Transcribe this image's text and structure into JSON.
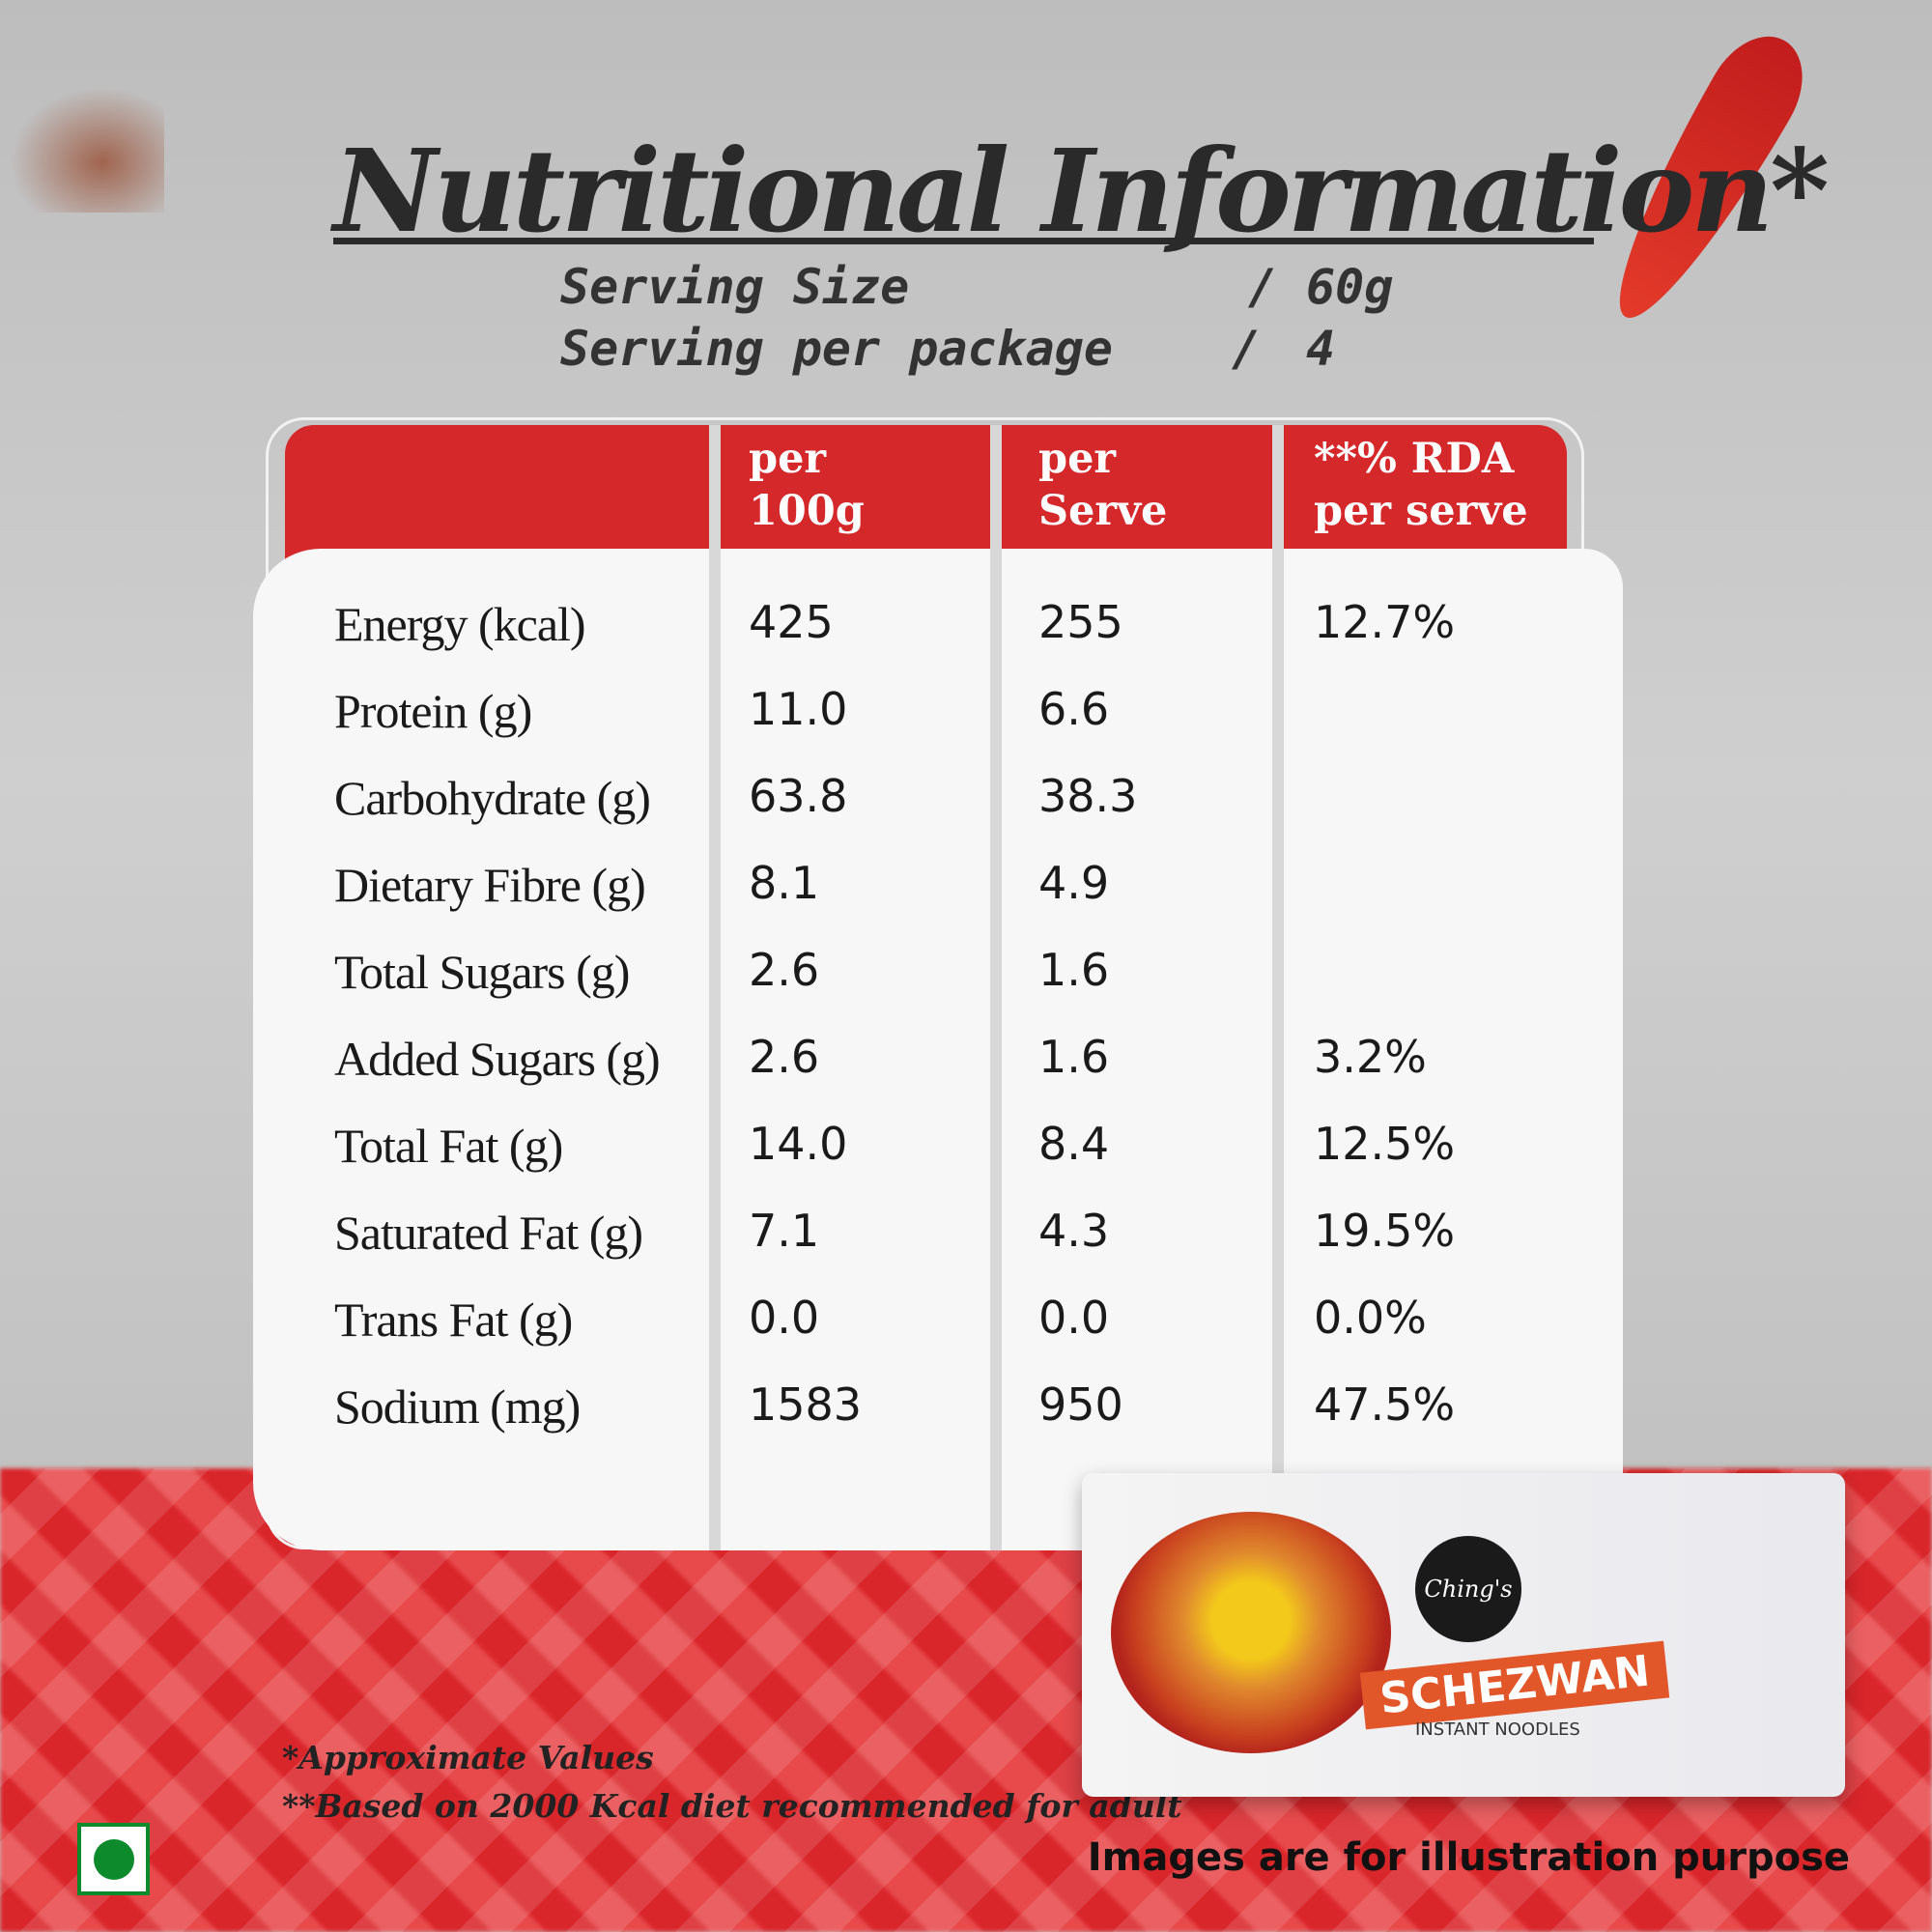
{
  "title": "Nutritional Information*",
  "serving": [
    {
      "label": "Serving Size",
      "value": "60g"
    },
    {
      "label": "Serving per package",
      "value": "4"
    }
  ],
  "table": {
    "headers": [
      [
        "per",
        "100g"
      ],
      [
        "per",
        "Serve"
      ],
      [
        "**% RDA",
        "per serve"
      ]
    ],
    "rows": [
      [
        "Energy (kcal)",
        "425",
        "255",
        "12.7%"
      ],
      [
        "Protein (g)",
        "11.0",
        "6.6",
        null
      ],
      [
        "Carbohydrate (g)",
        "63.8",
        "38.3",
        null
      ],
      [
        "Dietary Fibre (g)",
        "8.1",
        "4.9",
        null
      ],
      [
        "Total Sugars (g)",
        "2.6",
        "1.6",
        null
      ],
      [
        "Added Sugars (g)",
        "2.6",
        "1.6",
        "3.2%"
      ],
      [
        "Total Fat (g)",
        "14.0",
        "8.4",
        "12.5%"
      ],
      [
        "Saturated Fat (g)",
        "7.1",
        "4.3",
        "19.5%"
      ],
      [
        "Trans Fat (g)",
        "0.0",
        "0.0",
        "0.0%"
      ],
      [
        "Sodium (mg)",
        "1583",
        "950",
        "47.5%"
      ]
    ]
  },
  "footnotes": [
    "*Approximate Values",
    "**Based on 2000 Kcal diet recommended for adult"
  ],
  "disclaimer": "Images are for illustration purpose",
  "packet": {
    "brand": "Ching's",
    "name": "SCHEZWAN",
    "subtitle": "INSTANT NOODLES"
  }
}
